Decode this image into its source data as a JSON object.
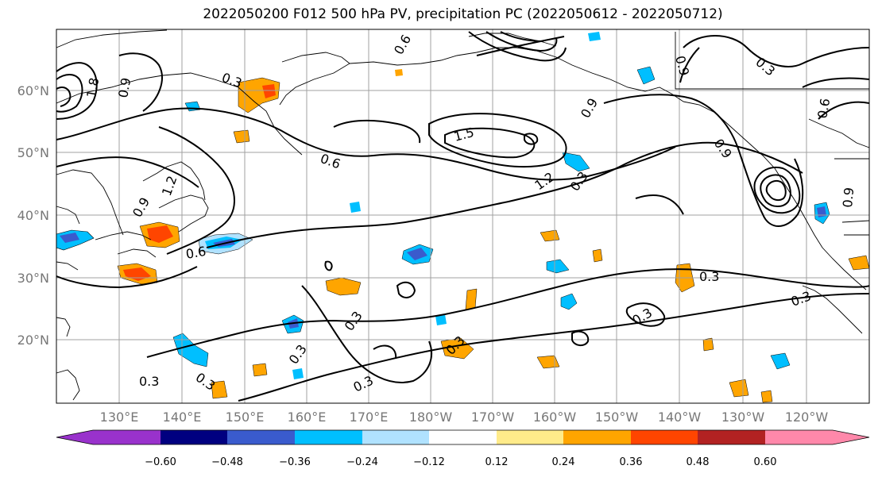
{
  "title": "2022050200 F012 500 hPa PV, precipitation PC (2022050612 - 2022050712)",
  "lat_labels": [
    "60°N",
    "50°N",
    "40°N",
    "30°N",
    "20°N"
  ],
  "lon_labels": [
    "130°E",
    "140°E",
    "150°E",
    "160°E",
    "170°E",
    "180°W",
    "170°W",
    "160°W",
    "150°W",
    "140°W",
    "130°W",
    "120°W"
  ],
  "colorbar": {
    "ticks": [
      "−0.60",
      "−0.48",
      "−0.36",
      "−0.24",
      "−0.12",
      "0.12",
      "0.24",
      "0.36",
      "0.48",
      "0.60"
    ],
    "colors": [
      "#9932cc",
      "#000080",
      "#3a5bcd",
      "#00bfff",
      "#b0e2ff",
      "#ffffff",
      "#ffeb8a",
      "#ffa500",
      "#ff4500",
      "#b22222",
      "#ff88aa"
    ]
  },
  "contour_labels": [
    "0.3",
    "0.6",
    "0.9",
    "1.2",
    "1.5",
    "1.8"
  ],
  "colors": {
    "land_outline": "#000000",
    "grid": "#a0a0a0",
    "contour": "#000000"
  }
}
